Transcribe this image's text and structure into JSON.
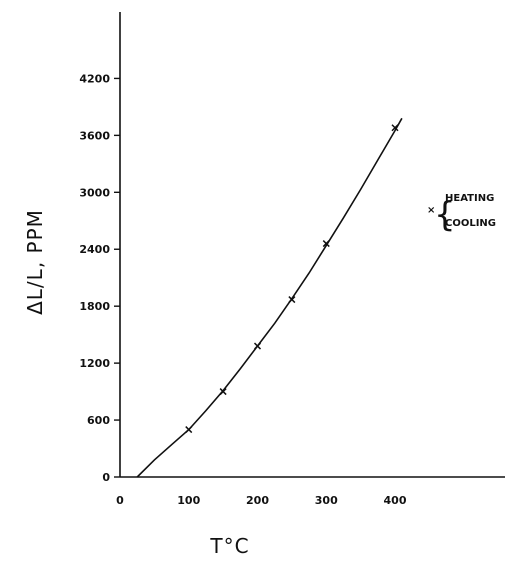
{
  "chart_data": {
    "type": "line",
    "title": "",
    "xlabel": "T°C",
    "ylabel": "ΔL/L, PPM",
    "xlim": [
      0,
      560
    ],
    "ylim": [
      0,
      4900
    ],
    "x_ticks": [
      0,
      100,
      200,
      300,
      400
    ],
    "y_ticks": [
      0,
      600,
      1200,
      1800,
      2400,
      3000,
      3600,
      4200
    ],
    "grid": false,
    "legend_position": "right",
    "legend": {
      "marker_symbol": "×",
      "brace": "{",
      "entries": [
        "HEATING",
        "COOLING"
      ]
    },
    "series": [
      {
        "name": "HEATING",
        "marker": "x",
        "x": [
          100,
          150,
          200,
          250,
          300,
          400
        ],
        "y": [
          500,
          900,
          1380,
          1870,
          2460,
          3680
        ]
      }
    ],
    "fit_curve": {
      "x": [
        25,
        50,
        75,
        100,
        125,
        150,
        175,
        200,
        225,
        250,
        275,
        300,
        325,
        350,
        375,
        400,
        410
      ],
      "y": [
        0,
        180,
        340,
        500,
        700,
        910,
        1140,
        1380,
        1620,
        1880,
        2150,
        2440,
        2730,
        3030,
        3340,
        3650,
        3780
      ]
    }
  }
}
